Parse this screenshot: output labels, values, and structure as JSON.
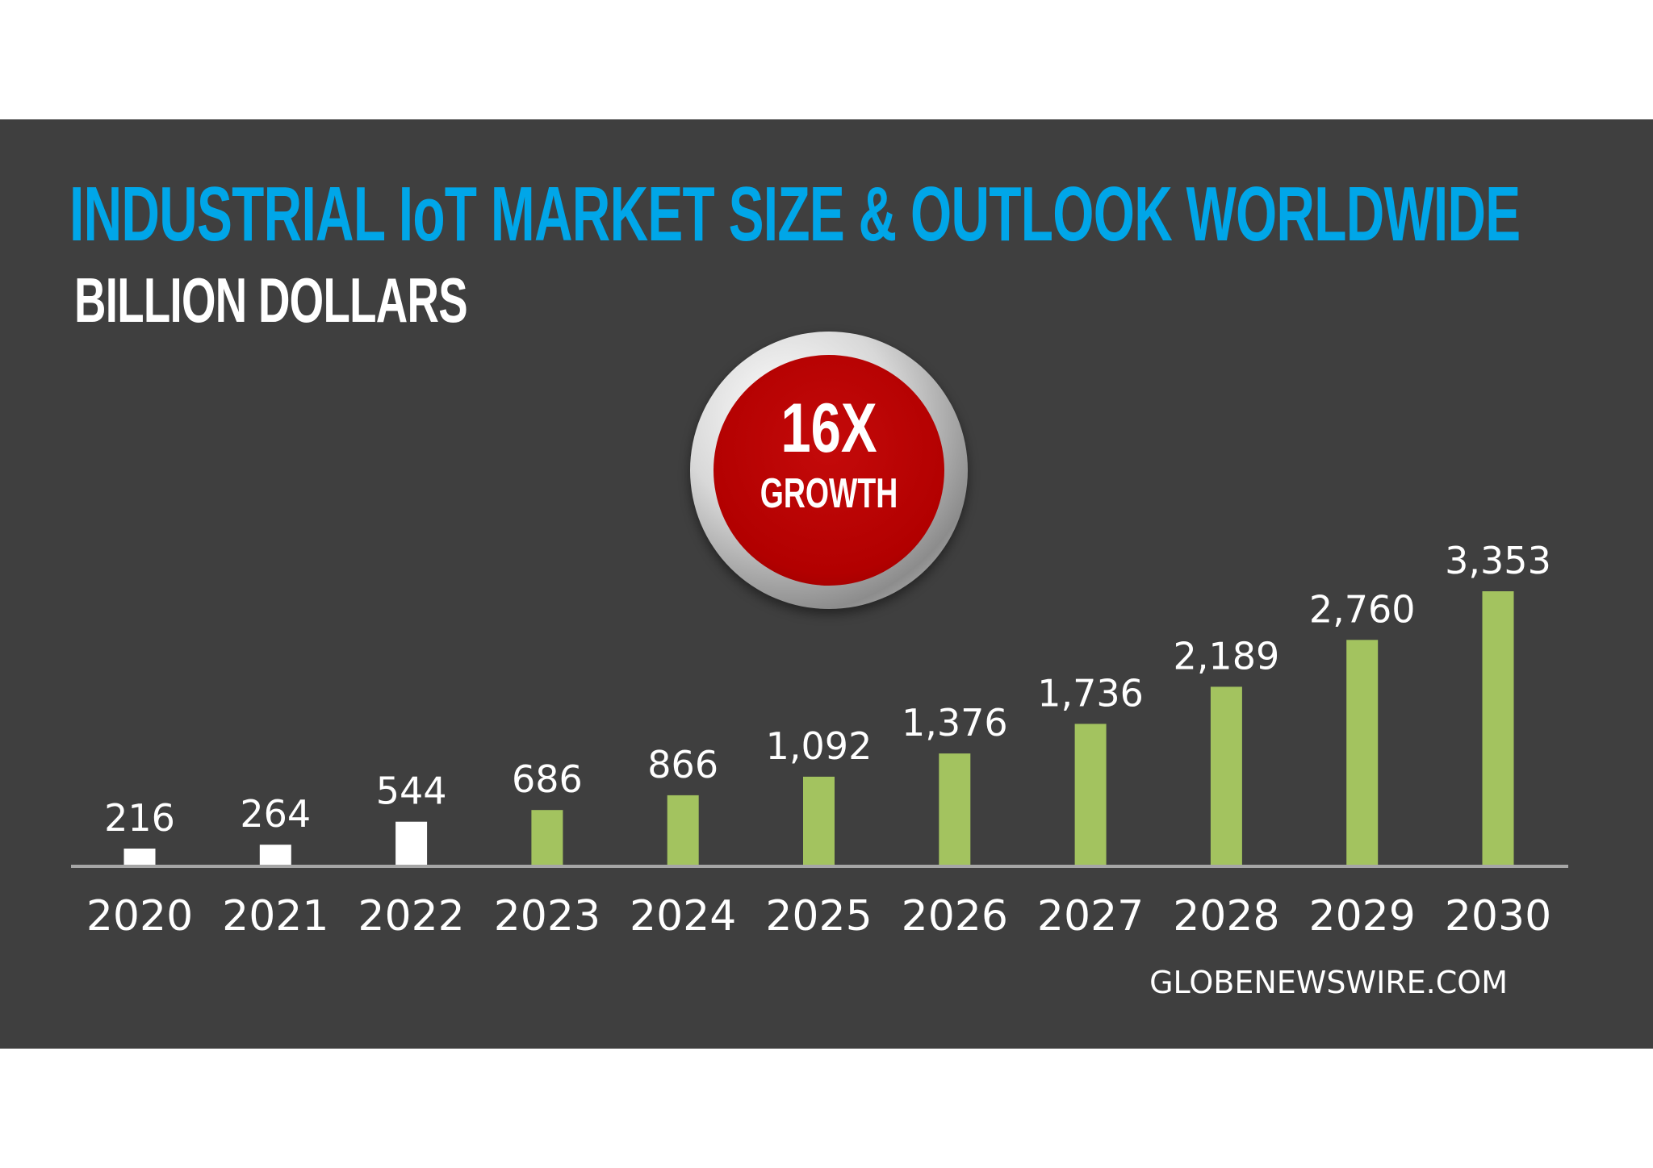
{
  "header": {
    "title": "INDUSTRIAL IoT MARKET SIZE & OUTLOOK WORLDWIDE",
    "subtitle": "BILLION DOLLARS"
  },
  "badge": {
    "big": "16X",
    "small": "GROWTH",
    "color": "#b20000"
  },
  "source": "GLOBENEWSWIRE.COM",
  "colors": {
    "background": "#3f3f3f",
    "title": "#00a6e8",
    "actual_bar": "#ffffff",
    "forecast_bar": "#a3c35f",
    "axis": "#a6a6a6"
  },
  "chart_data": {
    "type": "bar",
    "title": "INDUSTRIAL IoT MARKET SIZE & OUTLOOK WORLDWIDE",
    "subtitle": "BILLION DOLLARS",
    "xlabel": "",
    "ylabel": "BILLION DOLLARS",
    "ylim": [
      0,
      3353
    ],
    "grid": false,
    "categories": [
      "2020",
      "2021",
      "2022",
      "2023",
      "2024",
      "2025",
      "2026",
      "2027",
      "2028",
      "2029",
      "2030"
    ],
    "values": [
      216,
      264,
      544,
      686,
      866,
      1092,
      1376,
      1736,
      2189,
      2760,
      3353
    ],
    "value_labels": [
      "216",
      "264",
      "544",
      "686",
      "866",
      "1,092",
      "1,376",
      "1,736",
      "2,189",
      "2,760",
      "3,353"
    ],
    "bar_kind": [
      "actual",
      "actual",
      "actual",
      "forecast",
      "forecast",
      "forecast",
      "forecast",
      "forecast",
      "forecast",
      "forecast",
      "forecast"
    ]
  }
}
